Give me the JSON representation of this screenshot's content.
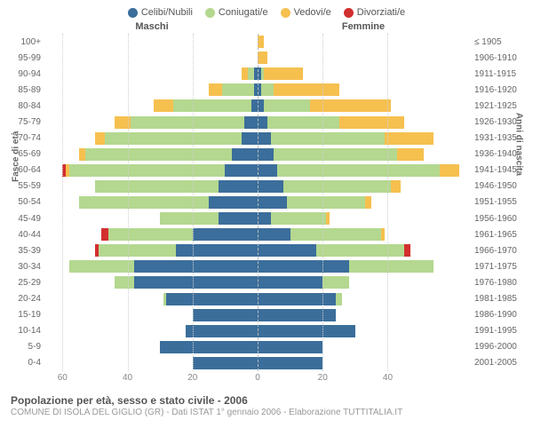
{
  "legend": [
    {
      "label": "Celibi/Nubili",
      "color": "#3b6e9b"
    },
    {
      "label": "Coniugati/e",
      "color": "#b4d88f"
    },
    {
      "label": "Vedovi/e",
      "color": "#f6c04f"
    },
    {
      "label": "Divorziati/e",
      "color": "#d22f2f"
    }
  ],
  "headers": {
    "male": "Maschi",
    "female": "Femmine"
  },
  "axis_left_label": "Fasce di età",
  "axis_right_label": "Anni di nascita",
  "x_ticks": [
    60,
    40,
    20,
    0,
    20,
    40
  ],
  "x_max": 65,
  "title": "Popolazione per età, sesso e stato civile - 2006",
  "subtitle": "COMUNE DI ISOLA DEL GIGLIO (GR) - Dati ISTAT 1° gennaio 2006 - Elaborazione TUTTITALIA.IT",
  "background_color": "#ffffff",
  "grid_color": "#dcdcdc",
  "rows": [
    {
      "age": "100+",
      "year": "≤ 1905",
      "m": {
        "c": 0,
        "k": 0,
        "v": 0,
        "d": 0
      },
      "f": {
        "c": 0,
        "k": 0,
        "v": 2,
        "d": 0
      }
    },
    {
      "age": "95-99",
      "year": "1906-1910",
      "m": {
        "c": 0,
        "k": 0,
        "v": 0,
        "d": 0
      },
      "f": {
        "c": 0,
        "k": 0,
        "v": 3,
        "d": 0
      }
    },
    {
      "age": "90-94",
      "year": "1911-1915",
      "m": {
        "c": 1,
        "k": 2,
        "v": 2,
        "d": 0
      },
      "f": {
        "c": 1,
        "k": 1,
        "v": 12,
        "d": 0
      }
    },
    {
      "age": "85-89",
      "year": "1916-1920",
      "m": {
        "c": 1,
        "k": 10,
        "v": 4,
        "d": 0
      },
      "f": {
        "c": 1,
        "k": 4,
        "v": 20,
        "d": 0
      }
    },
    {
      "age": "80-84",
      "year": "1921-1925",
      "m": {
        "c": 2,
        "k": 24,
        "v": 6,
        "d": 0
      },
      "f": {
        "c": 2,
        "k": 14,
        "v": 25,
        "d": 0
      }
    },
    {
      "age": "75-79",
      "year": "1926-1930",
      "m": {
        "c": 4,
        "k": 35,
        "v": 5,
        "d": 0
      },
      "f": {
        "c": 3,
        "k": 22,
        "v": 20,
        "d": 0
      }
    },
    {
      "age": "70-74",
      "year": "1931-1935",
      "m": {
        "c": 5,
        "k": 42,
        "v": 3,
        "d": 0
      },
      "f": {
        "c": 4,
        "k": 35,
        "v": 15,
        "d": 0
      }
    },
    {
      "age": "65-69",
      "year": "1936-1940",
      "m": {
        "c": 8,
        "k": 45,
        "v": 2,
        "d": 0
      },
      "f": {
        "c": 5,
        "k": 38,
        "v": 8,
        "d": 0
      }
    },
    {
      "age": "60-64",
      "year": "1941-1945",
      "m": {
        "c": 10,
        "k": 48,
        "v": 1,
        "d": 1
      },
      "f": {
        "c": 6,
        "k": 50,
        "v": 6,
        "d": 0
      }
    },
    {
      "age": "55-59",
      "year": "1946-1950",
      "m": {
        "c": 12,
        "k": 38,
        "v": 0,
        "d": 0
      },
      "f": {
        "c": 8,
        "k": 33,
        "v": 3,
        "d": 0
      }
    },
    {
      "age": "50-54",
      "year": "1951-1955",
      "m": {
        "c": 15,
        "k": 40,
        "v": 0,
        "d": 0
      },
      "f": {
        "c": 9,
        "k": 24,
        "v": 2,
        "d": 0
      }
    },
    {
      "age": "45-49",
      "year": "1956-1960",
      "m": {
        "c": 12,
        "k": 18,
        "v": 0,
        "d": 0
      },
      "f": {
        "c": 4,
        "k": 17,
        "v": 1,
        "d": 0
      }
    },
    {
      "age": "40-44",
      "year": "1961-1965",
      "m": {
        "c": 20,
        "k": 26,
        "v": 0,
        "d": 2
      },
      "f": {
        "c": 10,
        "k": 28,
        "v": 1,
        "d": 0
      }
    },
    {
      "age": "35-39",
      "year": "1966-1970",
      "m": {
        "c": 25,
        "k": 24,
        "v": 0,
        "d": 1
      },
      "f": {
        "c": 18,
        "k": 27,
        "v": 0,
        "d": 2
      }
    },
    {
      "age": "30-34",
      "year": "1971-1975",
      "m": {
        "c": 38,
        "k": 20,
        "v": 0,
        "d": 0
      },
      "f": {
        "c": 28,
        "k": 26,
        "v": 0,
        "d": 0
      }
    },
    {
      "age": "25-29",
      "year": "1976-1980",
      "m": {
        "c": 38,
        "k": 6,
        "v": 0,
        "d": 0
      },
      "f": {
        "c": 20,
        "k": 8,
        "v": 0,
        "d": 0
      }
    },
    {
      "age": "20-24",
      "year": "1981-1985",
      "m": {
        "c": 28,
        "k": 1,
        "v": 0,
        "d": 0
      },
      "f": {
        "c": 24,
        "k": 2,
        "v": 0,
        "d": 0
      }
    },
    {
      "age": "15-19",
      "year": "1986-1990",
      "m": {
        "c": 20,
        "k": 0,
        "v": 0,
        "d": 0
      },
      "f": {
        "c": 24,
        "k": 0,
        "v": 0,
        "d": 0
      }
    },
    {
      "age": "10-14",
      "year": "1991-1995",
      "m": {
        "c": 22,
        "k": 0,
        "v": 0,
        "d": 0
      },
      "f": {
        "c": 30,
        "k": 0,
        "v": 0,
        "d": 0
      }
    },
    {
      "age": "5-9",
      "year": "1996-2000",
      "m": {
        "c": 30,
        "k": 0,
        "v": 0,
        "d": 0
      },
      "f": {
        "c": 20,
        "k": 0,
        "v": 0,
        "d": 0
      }
    },
    {
      "age": "0-4",
      "year": "2001-2005",
      "m": {
        "c": 20,
        "k": 0,
        "v": 0,
        "d": 0
      },
      "f": {
        "c": 20,
        "k": 0,
        "v": 0,
        "d": 0
      }
    }
  ]
}
